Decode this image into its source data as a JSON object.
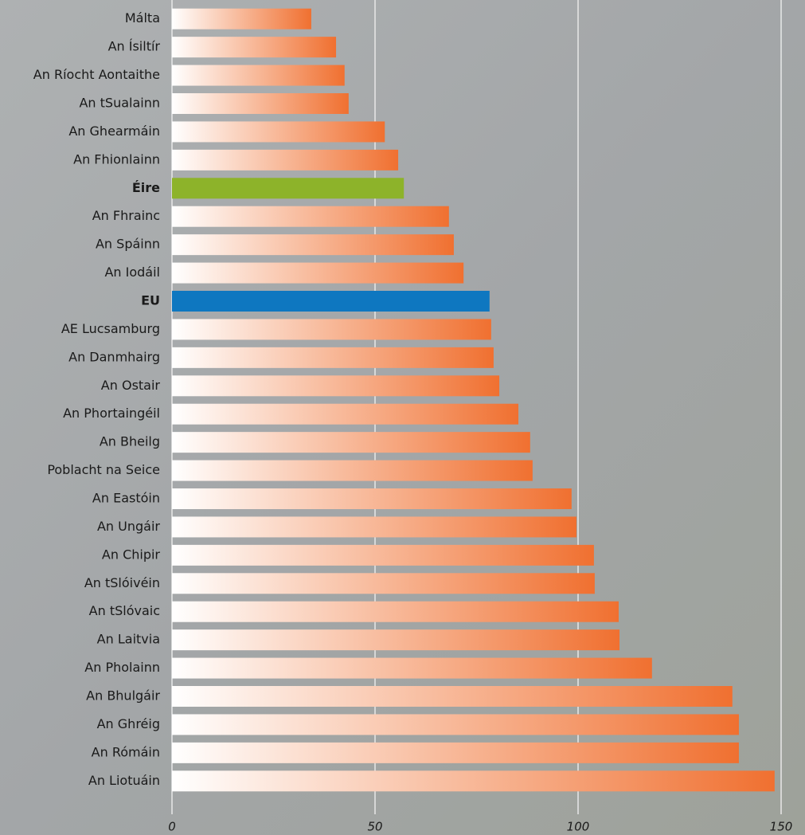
{
  "chart_data": {
    "type": "barh",
    "categories": [
      "Málta",
      "An Ísiltír",
      "An Ríocht Aontaithe",
      "An tSualainn",
      "An Ghearmáin",
      "An Fhionlainn",
      "Éire",
      "An Fhrainc",
      "An Spáinn",
      "An Iodáil",
      "EU",
      "AE Lucsamburg",
      "An Danmhairg",
      "An Ostair",
      "An Phortaingéil",
      "An Bheilg",
      "Poblacht na Seice",
      "An Eastóin",
      "An Ungáir",
      "An Chipir",
      "An tSlóivéin",
      "An tSlóvaic",
      "An Laitvia",
      "An Pholainn",
      "An Bhulgáir",
      "An Ghréig",
      "An Rómáin",
      "An Liotuáin"
    ],
    "values": [
      34.3,
      40.4,
      42.5,
      43.5,
      52.4,
      55.7,
      57.1,
      68.2,
      69.4,
      71.8,
      78.2,
      78.6,
      79.2,
      80.6,
      85.3,
      88.2,
      88.8,
      98.4,
      99.6,
      103.9,
      104.1,
      110,
      110.2,
      118.2,
      138,
      139.6,
      139.6,
      148.4
    ],
    "color": "#f07030",
    "gradient": true,
    "colors": [
      "#f07030",
      "#f07030",
      "#f07030",
      "#f07030",
      "#f07030",
      "#f07030",
      "#8db32a",
      "#f07030",
      "#f07030",
      "#f07030",
      "#0e77c0",
      "#f07030",
      "#f07030",
      "#f07030",
      "#f07030",
      "#f07030",
      "#f07030",
      "#f07030",
      "#f07030",
      "#f07030",
      "#f07030",
      "#f07030",
      "#f07030",
      "#f07030",
      "#f07030",
      "#f07030",
      "#f07030",
      "#f07030"
    ],
    "xlim": [
      0,
      150
    ],
    "xticks": [
      0,
      50,
      100,
      150
    ],
    "grid": true
  }
}
